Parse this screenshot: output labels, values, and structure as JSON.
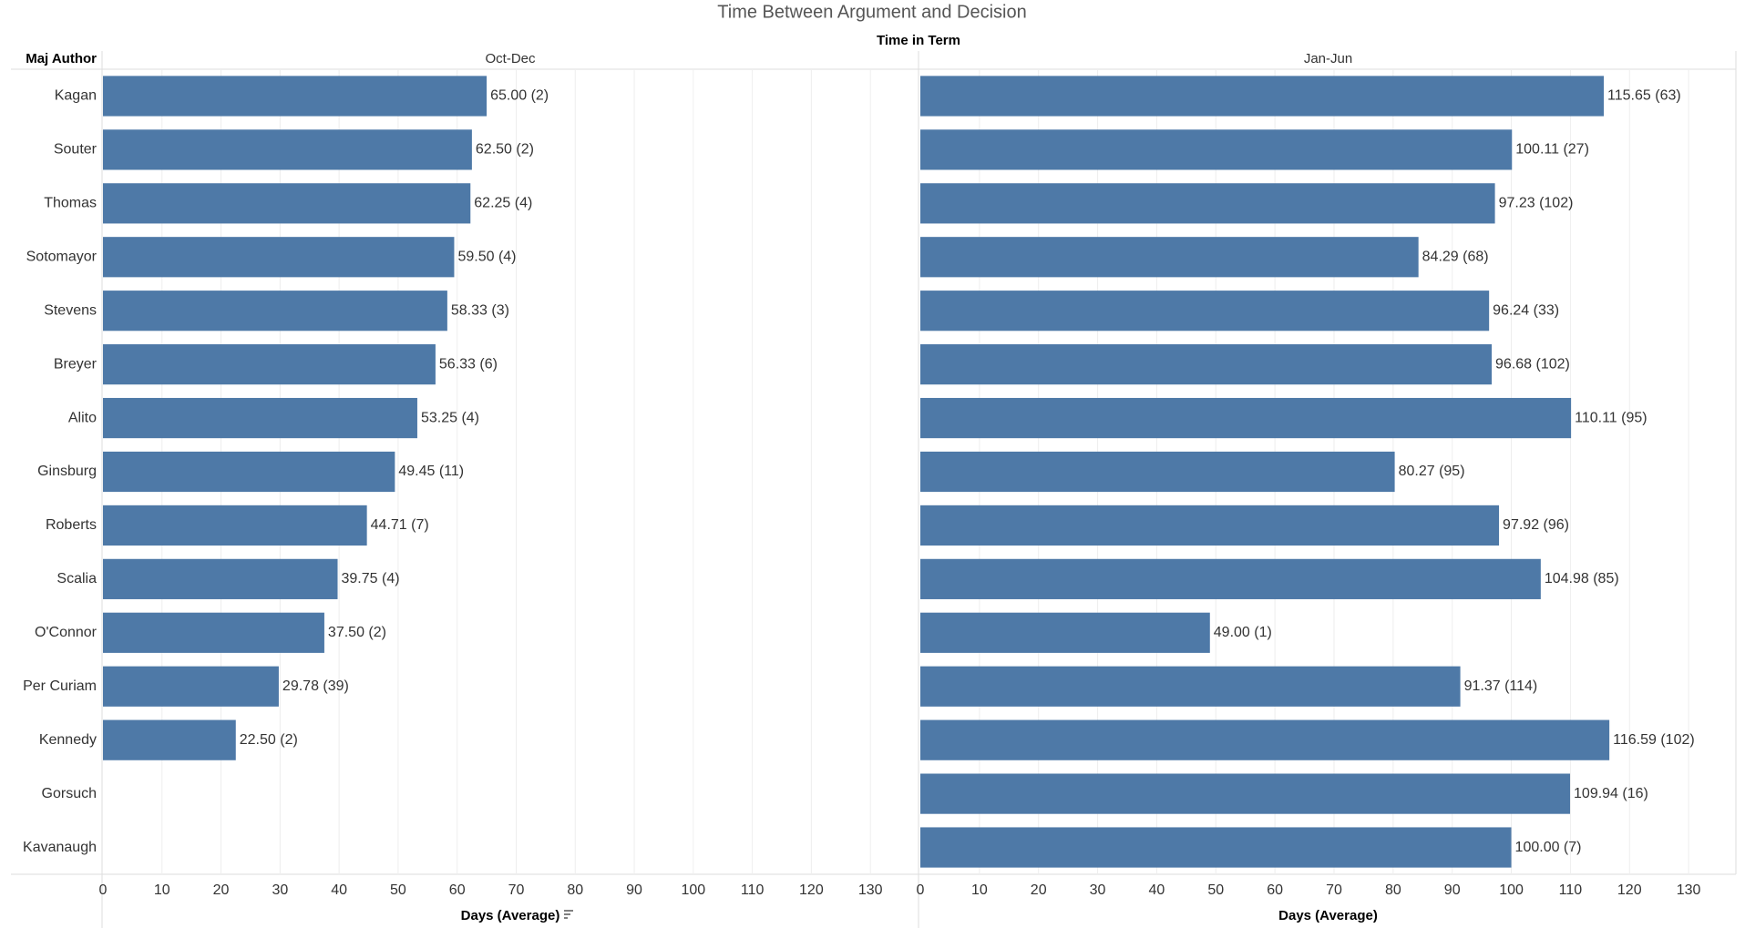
{
  "chart_data": {
    "type": "bar",
    "title": "Time Between Argument and Decision",
    "column_header": "Time in Term",
    "row_header": "Maj Author",
    "xlabel": "Days (Average)",
    "color": "#4e79a7",
    "categories": [
      "Kagan",
      "Souter",
      "Thomas",
      "Sotomayor",
      "Stevens",
      "Breyer",
      "Alito",
      "Ginsburg",
      "Roberts",
      "Scalia",
      "O'Connor",
      "Per Curiam",
      "Kennedy",
      "Gorsuch",
      "Kavanaugh"
    ],
    "panels": [
      {
        "name": "Oct-Dec",
        "values": [
          65.0,
          62.5,
          62.25,
          59.5,
          58.33,
          56.33,
          53.25,
          49.45,
          44.71,
          39.75,
          37.5,
          29.78,
          22.5,
          null,
          null
        ],
        "value_labels": [
          "65.00 (2)",
          "62.50 (2)",
          "62.25 (4)",
          "59.50 (4)",
          "58.33 (3)",
          "56.33 (6)",
          "53.25 (4)",
          "49.45 (11)",
          "44.71 (7)",
          "39.75 (4)",
          "37.50 (2)",
          "29.78 (39)",
          "22.50 (2)",
          null,
          null
        ]
      },
      {
        "name": "Jan-Jun",
        "values": [
          115.65,
          100.11,
          97.23,
          84.29,
          96.24,
          96.68,
          110.11,
          80.27,
          97.92,
          104.98,
          49.0,
          91.37,
          116.59,
          109.94,
          100.0
        ],
        "value_labels": [
          "115.65 (63)",
          "100.11 (27)",
          "97.23 (102)",
          "84.29 (68)",
          "96.24 (33)",
          "96.68 (102)",
          "110.11 (95)",
          "80.27 (95)",
          "97.92 (96)",
          "104.98 (85)",
          "49.00 (1)",
          "91.37 (114)",
          "116.59 (102)",
          "109.94 (16)",
          "100.00 (7)"
        ]
      }
    ],
    "xlim": [
      0,
      138
    ],
    "xticks": [
      0,
      10,
      20,
      30,
      40,
      50,
      60,
      70,
      80,
      90,
      100,
      110,
      120,
      130
    ],
    "grid": true
  }
}
